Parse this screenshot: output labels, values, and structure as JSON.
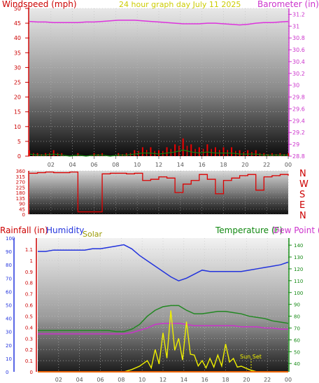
{
  "header": {
    "left_label": "Windspeed (mph)",
    "center_label": "24 hour graph day   July 11 2025",
    "right_label": "Barometer (in)"
  },
  "bottom_header": {
    "rainfall_label": "Rainfall (in)",
    "humidity_label": "Humidity",
    "solar_label": "Solar",
    "temperature_label": "Temperature (F)",
    "dewpoint_label": "Dew Point ("
  },
  "annotations": {
    "sunset": "Sun Set"
  },
  "colors": {
    "windspeed": "#ee0000",
    "wind_avg": "#118811",
    "barometer": "#dd33dd",
    "winddir": "#dd0000",
    "humidity": "#2233dd",
    "temperature": "#228822",
    "dewpoint": "#cc33cc",
    "solar": "#eeee00",
    "rain": "#ee6600",
    "compass": "#cc0000",
    "title": "#cccc00",
    "rainfall_axis": "#cc0000"
  },
  "chart_data": [
    {
      "type": "line",
      "title": "24 hour graph day   July 11 2025",
      "grid": true,
      "x_ticks": [
        "02",
        "04",
        "06",
        "08",
        "10",
        "12",
        "14",
        "16",
        "18",
        "20",
        "22",
        "00"
      ],
      "x_hours": [
        0,
        0.75,
        1.5,
        2.25,
        3,
        3.75,
        4.5,
        5.25,
        6,
        6.75,
        7.5,
        8.25,
        9,
        9.75,
        10.5,
        11.25,
        12,
        12.75,
        13.5,
        14.25,
        15,
        15.75,
        16.5,
        17.25,
        18,
        18.75,
        19.5,
        20.25,
        21,
        21.75,
        22.5,
        23.25,
        24
      ],
      "left_axis": {
        "label": "Windspeed (mph)",
        "ylim": [
          0,
          50
        ],
        "ticks": [
          0,
          5,
          10,
          15,
          20,
          25,
          30,
          35,
          40,
          45,
          50
        ]
      },
      "right_axis": {
        "label": "Barometer (in)",
        "ylim": [
          28.8,
          31.3
        ],
        "ticks": [
          "28.8",
          "29",
          "29.2",
          "29.4",
          "29.6",
          "29.8",
          "30",
          "30.2",
          "30.4",
          "30.6",
          "30.8",
          "31",
          "31.2"
        ]
      },
      "series": [
        {
          "name": "Windspeed (mph)",
          "axis": "left",
          "style": "bars",
          "values": [
            2,
            1,
            1,
            2,
            1,
            0,
            1,
            0,
            1,
            1,
            0,
            1,
            1,
            2,
            3,
            3,
            2,
            3,
            4,
            6,
            4,
            3,
            4,
            3,
            3,
            3,
            2,
            2,
            2,
            1,
            1,
            1,
            1
          ]
        },
        {
          "name": "Barometer (in)",
          "axis": "right",
          "values": [
            31.08,
            31.07,
            31.07,
            31.06,
            31.06,
            31.06,
            31.06,
            31.07,
            31.07,
            31.08,
            31.09,
            31.1,
            31.1,
            31.1,
            31.09,
            31.08,
            31.07,
            31.06,
            31.05,
            31.04,
            31.04,
            31.04,
            31.05,
            31.05,
            31.04,
            31.03,
            31.02,
            31.03,
            31.05,
            31.06,
            31.06,
            31.07,
            31.08
          ]
        }
      ]
    },
    {
      "type": "line",
      "x_hours": [
        0,
        0.75,
        1.5,
        2.25,
        3,
        3.75,
        4.5,
        5.25,
        6,
        6.75,
        7.5,
        8.25,
        9,
        9.75,
        10.5,
        11.25,
        12,
        12.75,
        13.5,
        14.25,
        15,
        15.75,
        16.5,
        17.25,
        18,
        18.75,
        19.5,
        20.25,
        21,
        21.75,
        22.5,
        23.25,
        24
      ],
      "left_axis": {
        "ylim": [
          0,
          360
        ],
        "ticks": [
          0,
          45,
          90,
          135,
          180,
          225,
          270,
          315,
          360
        ]
      },
      "compass_labels": [
        "N",
        "W",
        "S",
        "E",
        "N"
      ],
      "series": [
        {
          "name": "Wind direction",
          "values": [
            340,
            345,
            350,
            345,
            345,
            350,
            20,
            20,
            20,
            335,
            340,
            340,
            335,
            340,
            280,
            290,
            310,
            300,
            180,
            250,
            280,
            330,
            290,
            170,
            280,
            300,
            320,
            330,
            200,
            310,
            320,
            330,
            320
          ]
        }
      ]
    },
    {
      "type": "line",
      "x_hours": [
        0,
        0.75,
        1.5,
        2.25,
        3,
        3.75,
        4.5,
        5.25,
        6,
        6.75,
        7.5,
        8.25,
        9,
        9.75,
        10.5,
        11.25,
        12,
        12.75,
        13.5,
        14.25,
        15,
        15.75,
        16.5,
        17.25,
        18,
        18.75,
        19.5,
        20.25,
        21,
        21.75,
        22.5,
        23.25,
        24
      ],
      "x_ticks": [
        "02",
        "04",
        "06",
        "08",
        "10",
        "12",
        "14",
        "16",
        "18",
        "20",
        "22",
        "00"
      ],
      "left_axis_rain": {
        "label": "Rainfall (in)",
        "ylim": [
          0,
          1.2
        ],
        "ticks": [
          "0",
          "0.1",
          "0.2",
          "0.3",
          "0.4",
          "0.5",
          "0.6",
          "0.7",
          "0.8",
          "0.9",
          "1",
          "1.1"
        ]
      },
      "left_axis_humidity": {
        "label": "Humidity",
        "ylim": [
          0,
          100
        ],
        "ticks": [
          0,
          10,
          20,
          30,
          40,
          50,
          60,
          70,
          80,
          90,
          100
        ]
      },
      "right_axis": {
        "label": "Temperature (F)",
        "ylim": [
          33,
          146
        ],
        "ticks": [
          40,
          50,
          60,
          70,
          80,
          90,
          100,
          110,
          120,
          130,
          140
        ]
      },
      "series": [
        {
          "name": "Humidity",
          "axis": "humidity",
          "values": [
            90,
            90,
            91,
            91,
            91,
            91,
            91,
            92,
            92,
            93,
            94,
            95,
            92,
            87,
            83,
            79,
            75,
            71,
            68,
            70,
            73,
            76,
            75,
            75,
            75,
            75,
            75,
            76,
            77,
            78,
            79,
            80,
            82
          ]
        },
        {
          "name": "Temperature (F)",
          "axis": "temperature",
          "values": [
            68,
            68,
            68,
            68,
            68,
            68,
            68,
            68,
            68,
            68,
            67,
            67,
            69,
            73,
            80,
            85,
            88,
            89,
            89,
            85,
            82,
            82,
            83,
            84,
            84,
            83,
            82,
            80,
            79,
            78,
            76,
            75,
            74
          ]
        },
        {
          "name": "Dew Point",
          "axis": "temperature",
          "values": [
            65,
            65,
            65,
            65,
            65,
            65,
            65,
            65,
            65,
            65,
            65,
            65,
            66,
            68,
            70,
            73,
            74,
            74,
            74,
            73,
            72,
            72,
            72,
            72,
            72,
            72,
            71,
            71,
            71,
            70,
            70,
            69,
            69
          ]
        },
        {
          "name": "Solar",
          "axis": "rain",
          "values": [
            0,
            0,
            0,
            0,
            0,
            0,
            0,
            0,
            0,
            0,
            0,
            0,
            0.02,
            0.05,
            0.1,
            0.2,
            0.35,
            0.55,
            0.3,
            0.45,
            0.15,
            0.1,
            0.12,
            0.15,
            0.25,
            0.12,
            0.05,
            0.02,
            0,
            0,
            0,
            0,
            0
          ]
        },
        {
          "name": "Rainfall (in)",
          "axis": "rain",
          "values": [
            0,
            0,
            0,
            0,
            0,
            0,
            0,
            0,
            0,
            0,
            0,
            0,
            0,
            0,
            0,
            0,
            0,
            0,
            0,
            0,
            0,
            0,
            0,
            0,
            0,
            0,
            0,
            0,
            0,
            0,
            0,
            0,
            0
          ]
        }
      ]
    }
  ]
}
